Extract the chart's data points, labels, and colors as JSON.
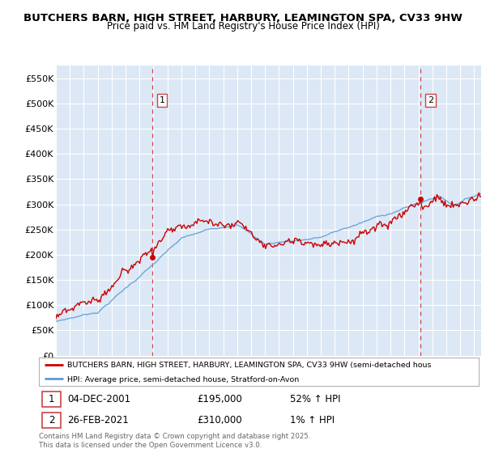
{
  "title": "BUTCHERS BARN, HIGH STREET, HARBURY, LEAMINGTON SPA, CV33 9HW",
  "subtitle": "Price paid vs. HM Land Registry's House Price Index (HPI)",
  "hpi_label": "HPI: Average price, semi-detached house, Stratford-on-Avon",
  "property_label": "BUTCHERS BARN, HIGH STREET, HARBURY, LEAMINGTON SPA, CV33 9HW (semi-detached hous",
  "footer": "Contains HM Land Registry data © Crown copyright and database right 2025.\nThis data is licensed under the Open Government Licence v3.0.",
  "red_color": "#cc0000",
  "blue_color": "#5b9bd5",
  "dashed_red": "#cc4444",
  "plot_bg": "#dce8f5",
  "ylim": [
    0,
    575000
  ],
  "yticks": [
    0,
    50000,
    100000,
    150000,
    200000,
    250000,
    300000,
    350000,
    400000,
    450000,
    500000,
    550000
  ],
  "ytick_labels": [
    "£0",
    "£50K",
    "£100K",
    "£150K",
    "£200K",
    "£250K",
    "£300K",
    "£350K",
    "£400K",
    "£450K",
    "£500K",
    "£550K"
  ],
  "purchase1_year": 2001.92,
  "purchase1_price": 195000,
  "purchase2_year": 2021.15,
  "purchase2_price": 310000,
  "background_color": "#ffffff",
  "grid_color": "#ffffff"
}
